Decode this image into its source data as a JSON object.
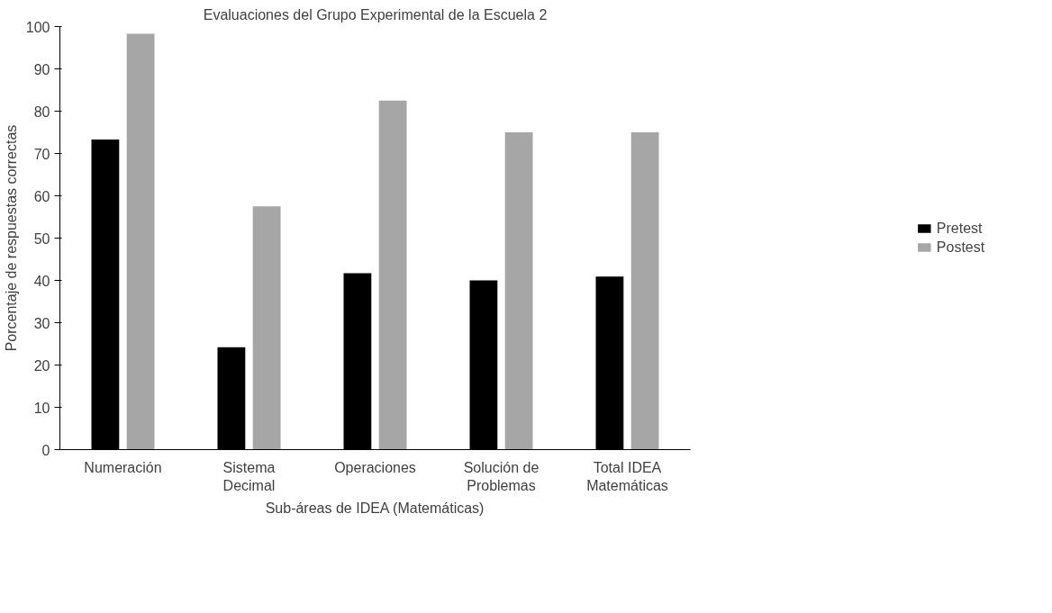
{
  "chart_data": {
    "type": "bar",
    "title": "Evaluaciones del Grupo Experimental de la Escuela 2",
    "xlabel": "Sub-áreas de IDEA (Matemáticas)",
    "ylabel": "Porcentaje de respuestas correctas",
    "categories": [
      "Numeración",
      "Sistema Decimal",
      "Operaciones",
      "Solución de Problemas",
      "Total IDEA Matemáticas"
    ],
    "series": [
      {
        "name": "Pretest",
        "color": "#000000",
        "values": [
          73.3,
          24.2,
          41.7,
          40,
          40.9
        ]
      },
      {
        "name": "Postest",
        "color": "#a6a6a6",
        "values": [
          98.3,
          57.5,
          82.5,
          75,
          75
        ]
      }
    ],
    "ylim": [
      0,
      100
    ],
    "yticks": [
      0,
      10,
      20,
      30,
      40,
      50,
      60,
      70,
      80,
      90,
      100
    ],
    "grid": false,
    "legend": "right"
  }
}
